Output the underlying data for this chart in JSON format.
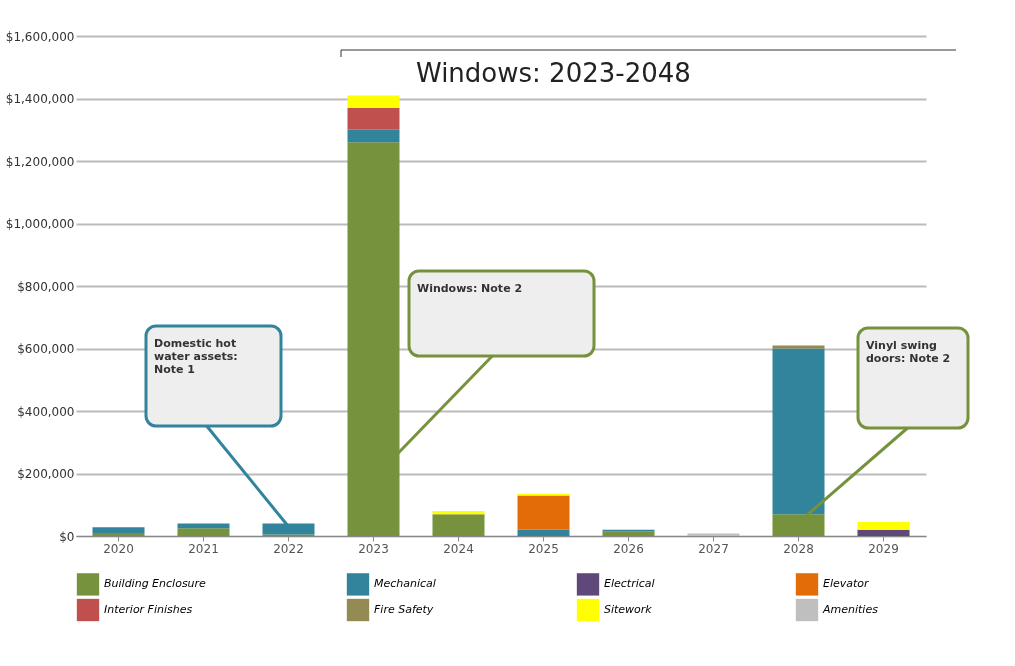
{
  "chart_data": {
    "type": "bar",
    "stacked": true,
    "categories": [
      "2020",
      "2021",
      "2022",
      "2023",
      "2024",
      "2025",
      "2026",
      "2027",
      "2028",
      "2029"
    ],
    "series": [
      {
        "name": "Building Enclosure",
        "color": "#76923c",
        "values": [
          10000,
          25000,
          5000,
          1260000,
          70000,
          0,
          15000,
          0,
          70000,
          0
        ]
      },
      {
        "name": "Mechanical",
        "color": "#31849b",
        "values": [
          18000,
          15000,
          35000,
          40000,
          0,
          20000,
          5000,
          0,
          530000,
          0
        ]
      },
      {
        "name": "Electrical",
        "color": "#5f497a",
        "values": [
          0,
          0,
          0,
          0,
          0,
          0,
          0,
          0,
          0,
          20000
        ]
      },
      {
        "name": "Elevator",
        "color": "#e36c09",
        "values": [
          0,
          0,
          0,
          0,
          0,
          110000,
          0,
          0,
          0,
          0
        ]
      },
      {
        "name": "Interior Finishes",
        "color": "#c0504d",
        "values": [
          0,
          0,
          0,
          70000,
          0,
          0,
          0,
          0,
          0,
          0
        ]
      },
      {
        "name": "Fire Safety",
        "color": "#948a54",
        "values": [
          0,
          0,
          0,
          0,
          0,
          0,
          0,
          0,
          10000,
          0
        ]
      },
      {
        "name": "Sitework",
        "color": "#ffff00",
        "values": [
          0,
          0,
          0,
          40000,
          10000,
          5000,
          0,
          0,
          0,
          25000
        ]
      },
      {
        "name": "Amenities",
        "color": "#bfbfbf",
        "values": [
          0,
          0,
          0,
          0,
          0,
          0,
          0,
          8000,
          0,
          0
        ]
      }
    ],
    "ylim": [
      0,
      1600000
    ],
    "yticks": [
      {
        "value": 0,
        "label": "$0"
      },
      {
        "value": 200000,
        "label": "$200,000"
      },
      {
        "value": 400000,
        "label": "$400,000"
      },
      {
        "value": 600000,
        "label": "$600,000"
      },
      {
        "value": 800000,
        "label": "$800,000"
      },
      {
        "value": 1000000,
        "label": "$1,000,000"
      },
      {
        "value": 1200000,
        "label": "$1,200,000"
      },
      {
        "value": 1400000,
        "label": "$1,400,000"
      },
      {
        "value": 1600000,
        "label": "$1,600,000"
      }
    ],
    "grid": "y",
    "legend": "bottom",
    "annotations": [
      "Windows: 2023-2048",
      "Domestic hot water assets: Note 1",
      "Windows: Note 2",
      "Vinyl swing doors: Note 2"
    ]
  }
}
